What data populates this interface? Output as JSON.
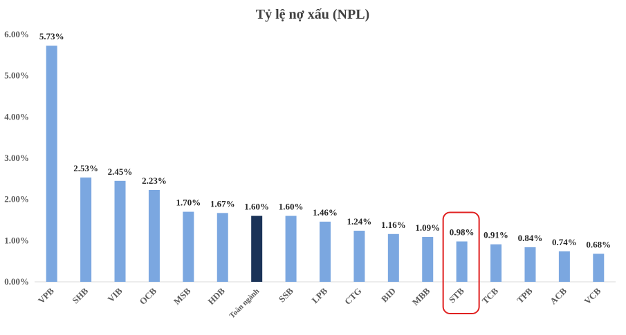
{
  "chart_data": {
    "type": "bar",
    "title": "Tỷ lệ nợ xấu (NPL)",
    "xlabel": "",
    "ylabel": "",
    "ylim": [
      0,
      6
    ],
    "yticks": [
      "0.00%",
      "1.00%",
      "2.00%",
      "3.00%",
      "4.00%",
      "5.00%",
      "6.00%"
    ],
    "categories": [
      "VPB",
      "SHB",
      "VIB",
      "OCB",
      "MSB",
      "HDB",
      "Toàn ngành",
      "SSB",
      "LPB",
      "CTG",
      "BID",
      "MBB",
      "STB",
      "TCB",
      "TPB",
      "ACB",
      "VCB"
    ],
    "values": [
      5.73,
      2.53,
      2.45,
      2.23,
      1.7,
      1.67,
      1.6,
      1.6,
      1.46,
      1.24,
      1.16,
      1.09,
      0.98,
      0.91,
      0.84,
      0.74,
      0.68
    ],
    "data_labels": [
      "5.73%",
      "2.53%",
      "2.45%",
      "2.23%",
      "1.70%",
      "1.67%",
      "1.60%",
      "1.60%",
      "1.46%",
      "1.24%",
      "1.16%",
      "1.09%",
      "0.98%",
      "0.91%",
      "0.84%",
      "0.74%",
      "0.68%"
    ],
    "grid": false,
    "legend": "none",
    "highlighted_category": "Toàn ngành",
    "circled_category": "STB",
    "colors": {
      "bar": "#7ba7e0",
      "highlight_bar": "#1b3358",
      "circle": "#e02020",
      "axis": "#d9d9d9"
    }
  }
}
